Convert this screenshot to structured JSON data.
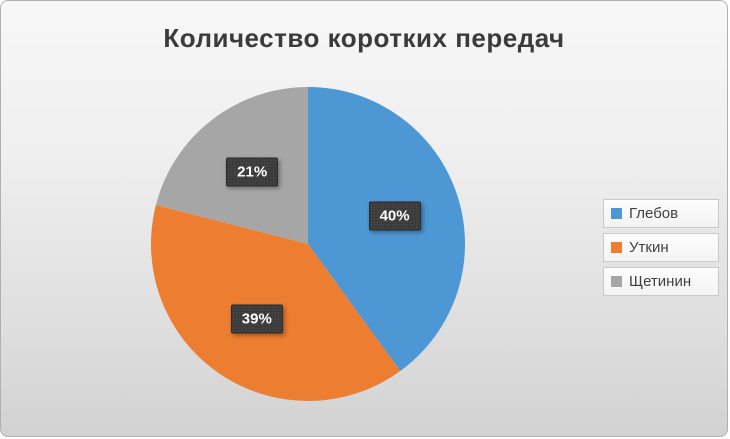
{
  "chart_data": {
    "type": "pie",
    "title": "Количество коротких передач",
    "categories": [
      "Глебов",
      "Уткин",
      "Щетинин"
    ],
    "values": [
      40,
      39,
      21
    ],
    "labels": [
      "40%",
      "39%",
      "21%"
    ],
    "unit": "%",
    "colors": [
      "#4e97d5",
      "#ed7d31",
      "#a6a6a6"
    ],
    "label_box_color": "#3a3a3a",
    "label_text_color": "#ffffff",
    "legend_position": "right",
    "start_angle_deg": 0,
    "direction": "clockwise",
    "grid": false
  }
}
